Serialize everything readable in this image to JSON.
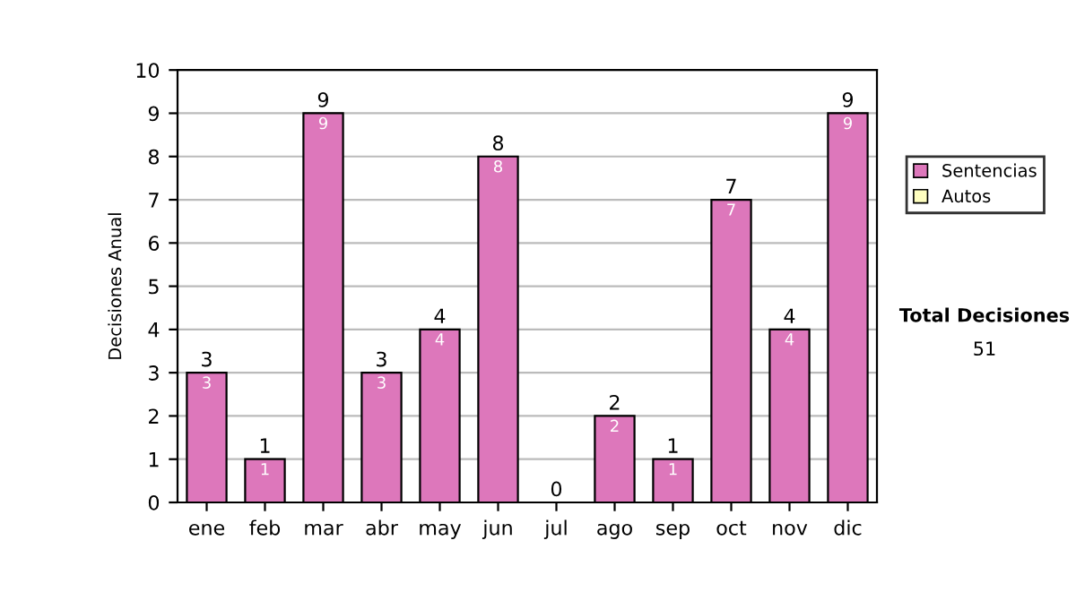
{
  "chart_data": {
    "type": "bar",
    "ylabel": "Decisiones Anual",
    "categories": [
      "ene",
      "feb",
      "mar",
      "abr",
      "may",
      "jun",
      "jul",
      "ago",
      "sep",
      "oct",
      "nov",
      "dic"
    ],
    "stacked": true,
    "series": [
      {
        "name": "Sentencias",
        "color": "#dd77bb",
        "values": [
          3,
          1,
          9,
          3,
          4,
          8,
          0,
          2,
          1,
          7,
          4,
          9
        ],
        "value_labels": [
          "3",
          "1",
          "9",
          "3",
          "4",
          "8",
          null,
          "2",
          "1",
          "7",
          "4",
          "9"
        ]
      },
      {
        "name": "Autos",
        "color": "#ffffc0",
        "values": [
          0,
          0,
          0,
          0,
          0,
          0,
          0,
          0,
          0,
          0,
          0,
          0
        ]
      }
    ],
    "totals": [
      "3",
      "1",
      "9",
      "3",
      "4",
      "8",
      "0",
      "2",
      "1",
      "7",
      "4",
      "9"
    ],
    "ylim": [
      0,
      10
    ],
    "yticks": [
      0,
      1,
      2,
      3,
      4,
      5,
      6,
      7,
      8,
      9,
      10
    ],
    "grid": "y",
    "legend": "right",
    "annotations": [
      "Total Decisiones",
      "51"
    ]
  }
}
